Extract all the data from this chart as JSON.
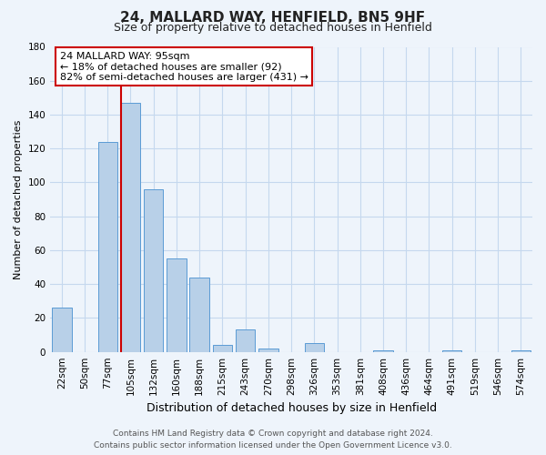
{
  "title": "24, MALLARD WAY, HENFIELD, BN5 9HF",
  "subtitle": "Size of property relative to detached houses in Henfield",
  "xlabel": "Distribution of detached houses by size in Henfield",
  "ylabel": "Number of detached properties",
  "bar_labels": [
    "22sqm",
    "50sqm",
    "77sqm",
    "105sqm",
    "132sqm",
    "160sqm",
    "188sqm",
    "215sqm",
    "243sqm",
    "270sqm",
    "298sqm",
    "326sqm",
    "353sqm",
    "381sqm",
    "408sqm",
    "436sqm",
    "464sqm",
    "491sqm",
    "519sqm",
    "546sqm",
    "574sqm"
  ],
  "bar_values": [
    26,
    0,
    124,
    147,
    96,
    55,
    44,
    4,
    13,
    2,
    0,
    5,
    0,
    0,
    1,
    0,
    0,
    1,
    0,
    0,
    1
  ],
  "bar_color": "#b8d0e8",
  "bar_edge_color": "#5b9bd5",
  "vline_index": 3,
  "vline_color": "#cc0000",
  "annotation_title": "24 MALLARD WAY: 95sqm",
  "annotation_line1": "← 18% of detached houses are smaller (92)",
  "annotation_line2": "82% of semi-detached houses are larger (431) →",
  "annotation_box_facecolor": "#ffffff",
  "annotation_border_color": "#cc0000",
  "ylim": [
    0,
    180
  ],
  "yticks": [
    0,
    20,
    40,
    60,
    80,
    100,
    120,
    140,
    160,
    180
  ],
  "footer_line1": "Contains HM Land Registry data © Crown copyright and database right 2024.",
  "footer_line2": "Contains public sector information licensed under the Open Government Licence v3.0.",
  "bg_color": "#eef4fb",
  "grid_color": "#c5d8ee",
  "title_fontsize": 11,
  "subtitle_fontsize": 9,
  "ylabel_fontsize": 8,
  "xlabel_fontsize": 9,
  "tick_fontsize": 7.5,
  "footer_fontsize": 6.5,
  "ann_fontsize": 8
}
